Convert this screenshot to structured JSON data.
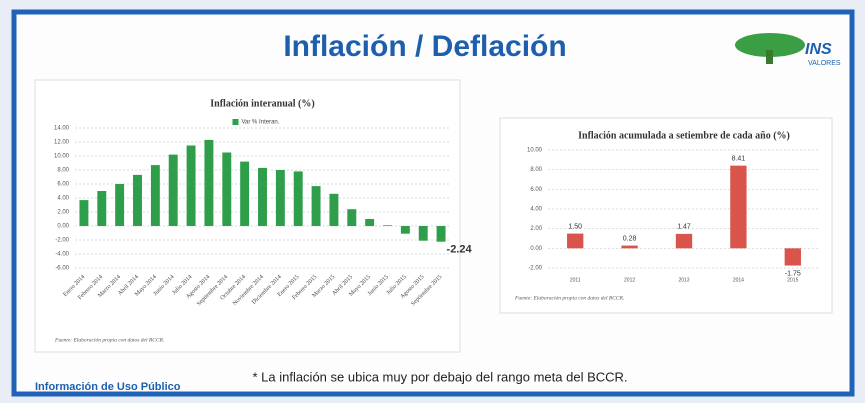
{
  "slide": {
    "title": "Inflación / Deflación",
    "logo_name": "INS",
    "logo_sub": "VALORES",
    "note": "* La inflación se ubica muy por debajo del rango meta del BCCR.",
    "footer": "Información de Uso Público"
  },
  "chart_data": [
    {
      "type": "bar",
      "title": "Inflación interanual (%)",
      "legend": "top",
      "categories": [
        "Enero 2014",
        "Febrero 2014",
        "Marzo 2014",
        "Abril 2014",
        "Mayo 2014",
        "Junio 2014",
        "Julio 2014",
        "Agosto 2014",
        "Septiembre 2014",
        "Octubre 2014",
        "Noviembre 2014",
        "Diciembre 2014",
        "Enero 2015",
        "Febrero 2015",
        "Marzo 2015",
        "Abril 2015",
        "Mayo 2015",
        "Junio 2015",
        "Julio 2015",
        "Agosto 2015",
        "Septiembre 2015"
      ],
      "series": [
        {
          "name": "Var % Interan.",
          "color": "#2e9e4a",
          "values": [
            3.7,
            5.0,
            6.0,
            7.3,
            8.7,
            10.2,
            11.5,
            12.3,
            10.5,
            9.2,
            8.3,
            8.0,
            7.8,
            5.7,
            4.6,
            2.4,
            1.0,
            0.1,
            -1.1,
            -2.1,
            -2.24
          ],
          "value_labels": [
            null,
            null,
            null,
            null,
            null,
            null,
            null,
            null,
            null,
            null,
            null,
            null,
            null,
            null,
            null,
            null,
            null,
            null,
            null,
            null,
            "-2.24"
          ]
        }
      ],
      "ylim": [
        -6,
        14
      ],
      "yticks": [
        {
          "value": 14,
          "label": "14.00"
        },
        {
          "value": 12,
          "label": "12.00"
        },
        {
          "value": 10,
          "label": "10.00"
        },
        {
          "value": 8,
          "label": "8.00"
        },
        {
          "value": 6,
          "label": "6.00"
        },
        {
          "value": 4,
          "label": "4.00"
        },
        {
          "value": 2,
          "label": "2.00"
        },
        {
          "value": 0,
          "label": "0.00"
        },
        {
          "value": -2,
          "label": "-2.00"
        },
        {
          "value": -4,
          "label": "-4.00"
        },
        {
          "value": -6,
          "label": "-6.00"
        }
      ],
      "grid": true,
      "source": "Fuente: Elaboración propia con datos del BCCR."
    },
    {
      "type": "bar",
      "title": "Inflación acumulada a setiembre de cada año (%)",
      "categories": [
        "2011",
        "2012",
        "2013",
        "2014",
        "2015"
      ],
      "series": [
        {
          "name": null,
          "color": "#d9544a",
          "values": [
            1.5,
            0.28,
            1.47,
            8.41,
            -1.75
          ],
          "value_labels": [
            "1.50",
            "0.28",
            "1.47",
            "8.41",
            "-1.75"
          ]
        }
      ],
      "ylim": [
        -2,
        10
      ],
      "yticks": [
        {
          "value": 10,
          "label": "10.00"
        },
        {
          "value": 8,
          "label": "8.00"
        },
        {
          "value": 6,
          "label": "6.00"
        },
        {
          "value": 4,
          "label": "4.00"
        },
        {
          "value": 2,
          "label": "2.00"
        },
        {
          "value": 0,
          "label": "0.00"
        },
        {
          "value": -2,
          "label": "-2.00"
        }
      ],
      "grid": true,
      "source": "Fuente: Elaboración propia con datos del BCCR."
    }
  ]
}
